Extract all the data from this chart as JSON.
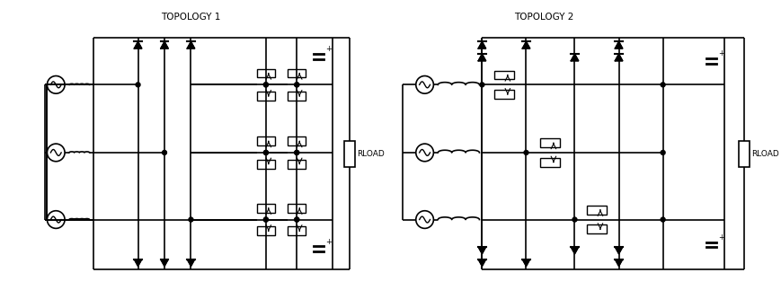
{
  "title1": "TOPOLOGY 1",
  "title2": "TOPOLOGY 2",
  "rload": "RLOAD",
  "bg_color": "#ffffff",
  "line_color": "#000000",
  "lw": 1.2,
  "figsize": [
    8.7,
    3.33
  ],
  "dpi": 100
}
